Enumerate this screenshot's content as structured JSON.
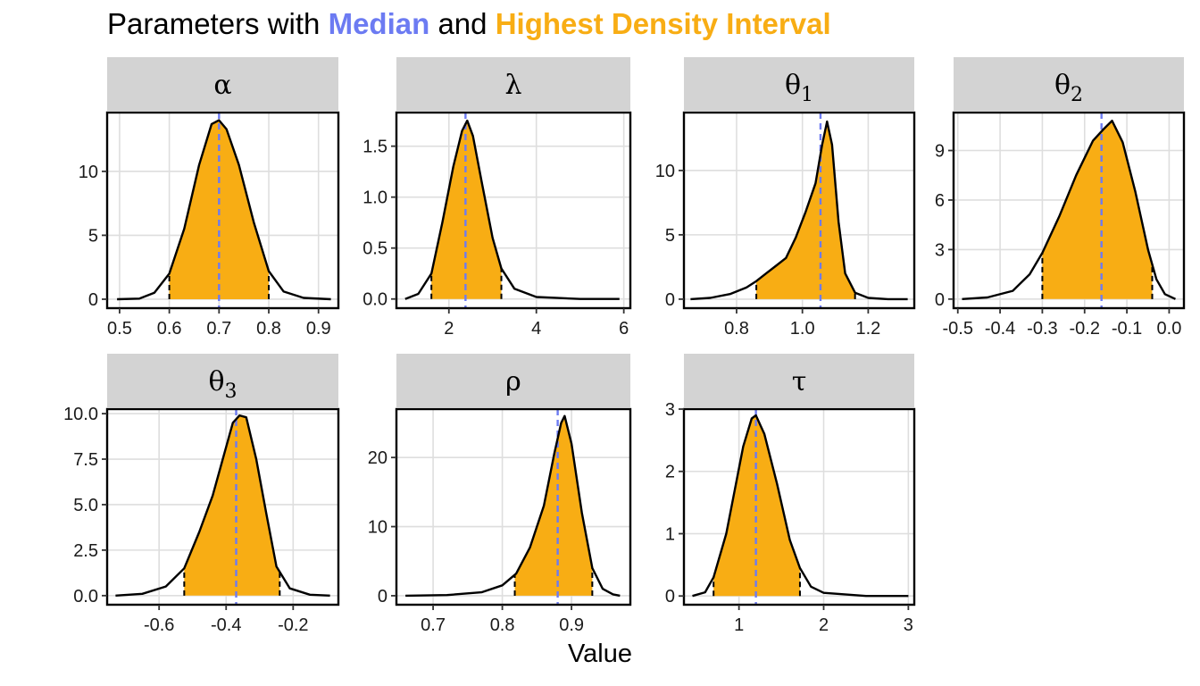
{
  "title": {
    "prefix": "Parameters with ",
    "median_word": "Median",
    "middle": " and ",
    "hdi_word": "Highest Density Interval"
  },
  "xlabel": "Value",
  "colors": {
    "median_line": "#6c7bf2",
    "hdi_fill": "#f8ad14",
    "strip_bg": "#d3d3d3",
    "grid": "#dedede",
    "curve": "#000000"
  },
  "chart_data": [
    {
      "type": "area",
      "param": "α",
      "xlim": [
        0.475,
        0.94
      ],
      "ylim": [
        -0.7,
        14.6
      ],
      "x_ticks": [
        0.5,
        0.6,
        0.7,
        0.8,
        0.9
      ],
      "x_tick_labels": [
        "0.5",
        "0.6",
        "0.7",
        "0.8",
        "0.9"
      ],
      "y_ticks": [
        0,
        5,
        10
      ],
      "y_tick_labels": [
        "0",
        "5",
        "10"
      ],
      "median": 0.7,
      "hdi": [
        0.6,
        0.8
      ],
      "density": [
        [
          0.495,
          0.0
        ],
        [
          0.54,
          0.05
        ],
        [
          0.57,
          0.5
        ],
        [
          0.6,
          2.0
        ],
        [
          0.63,
          5.5
        ],
        [
          0.66,
          10.5
        ],
        [
          0.685,
          13.7
        ],
        [
          0.7,
          14.0
        ],
        [
          0.715,
          13.3
        ],
        [
          0.74,
          10.5
        ],
        [
          0.77,
          6.0
        ],
        [
          0.8,
          2.2
        ],
        [
          0.83,
          0.6
        ],
        [
          0.87,
          0.1
        ],
        [
          0.925,
          0.0
        ]
      ]
    },
    {
      "type": "area",
      "param": "λ",
      "xlim": [
        0.8,
        6.15
      ],
      "ylim": [
        -0.09,
        1.83
      ],
      "x_ticks": [
        2,
        4,
        6
      ],
      "x_tick_labels": [
        "2",
        "4",
        "6"
      ],
      "y_ticks": [
        0.0,
        0.5,
        1.0,
        1.5
      ],
      "y_tick_labels": [
        "0.0",
        "0.5",
        "1.0",
        "1.5"
      ],
      "median": 2.38,
      "hdi": [
        1.6,
        3.2
      ],
      "density": [
        [
          1.0,
          0.0
        ],
        [
          1.3,
          0.05
        ],
        [
          1.6,
          0.25
        ],
        [
          1.85,
          0.75
        ],
        [
          2.1,
          1.3
        ],
        [
          2.3,
          1.65
        ],
        [
          2.42,
          1.75
        ],
        [
          2.55,
          1.6
        ],
        [
          2.75,
          1.15
        ],
        [
          3.0,
          0.6
        ],
        [
          3.2,
          0.3
        ],
        [
          3.5,
          0.1
        ],
        [
          4.0,
          0.02
        ],
        [
          5.0,
          0.0
        ],
        [
          5.9,
          0.0
        ]
      ]
    },
    {
      "type": "area",
      "param": "θ1",
      "xlim": [
        0.64,
        1.34
      ],
      "ylim": [
        -0.7,
        14.5
      ],
      "x_ticks": [
        0.8,
        1.0,
        1.2
      ],
      "x_tick_labels": [
        "0.8",
        "1.0",
        "1.2"
      ],
      "y_ticks": [
        0,
        5,
        10
      ],
      "y_tick_labels": [
        "0",
        "5",
        "10"
      ],
      "median": 1.055,
      "hdi": [
        0.86,
        1.16
      ],
      "density": [
        [
          0.66,
          0.0
        ],
        [
          0.72,
          0.1
        ],
        [
          0.78,
          0.4
        ],
        [
          0.83,
          0.9
        ],
        [
          0.86,
          1.4
        ],
        [
          0.89,
          2.0
        ],
        [
          0.92,
          2.6
        ],
        [
          0.95,
          3.2
        ],
        [
          0.98,
          4.8
        ],
        [
          1.01,
          6.8
        ],
        [
          1.04,
          9.0
        ],
        [
          1.06,
          12.0
        ],
        [
          1.075,
          13.8
        ],
        [
          1.09,
          12.0
        ],
        [
          1.11,
          6.0
        ],
        [
          1.13,
          2.0
        ],
        [
          1.16,
          0.5
        ],
        [
          1.2,
          0.1
        ],
        [
          1.26,
          0.0
        ],
        [
          1.32,
          0.0
        ]
      ]
    },
    {
      "type": "area",
      "param": "θ2",
      "xlim": [
        -0.51,
        0.035
      ],
      "ylim": [
        -0.55,
        11.3
      ],
      "x_ticks": [
        -0.5,
        -0.4,
        -0.3,
        -0.2,
        -0.1,
        0.0
      ],
      "x_tick_labels": [
        "-0.5",
        "-0.4",
        "-0.3",
        "-0.2",
        "-0.1",
        "0.0"
      ],
      "y_ticks": [
        0,
        3,
        6,
        9
      ],
      "y_tick_labels": [
        "0",
        "3",
        "6",
        "9"
      ],
      "median": -0.16,
      "hdi": [
        -0.3,
        -0.04
      ],
      "density": [
        [
          -0.49,
          0.0
        ],
        [
          -0.43,
          0.1
        ],
        [
          -0.37,
          0.5
        ],
        [
          -0.33,
          1.5
        ],
        [
          -0.3,
          2.8
        ],
        [
          -0.26,
          5.0
        ],
        [
          -0.22,
          7.5
        ],
        [
          -0.18,
          9.6
        ],
        [
          -0.155,
          10.3
        ],
        [
          -0.135,
          10.8
        ],
        [
          -0.11,
          9.5
        ],
        [
          -0.08,
          6.5
        ],
        [
          -0.05,
          3.0
        ],
        [
          -0.03,
          1.2
        ],
        [
          -0.01,
          0.3
        ],
        [
          0.015,
          0.0
        ]
      ]
    },
    {
      "type": "area",
      "param": "θ3",
      "xlim": [
        -0.755,
        -0.065
      ],
      "ylim": [
        -0.5,
        10.25
      ],
      "x_ticks": [
        -0.6,
        -0.4,
        -0.2
      ],
      "x_tick_labels": [
        "-0.6",
        "-0.4",
        "-0.2"
      ],
      "y_ticks": [
        0.0,
        2.5,
        5.0,
        7.5,
        10.0
      ],
      "y_tick_labels": [
        "0.0",
        "2.5",
        "5.0",
        "7.5",
        "10.0"
      ],
      "median": -0.37,
      "hdi": [
        -0.525,
        -0.24
      ],
      "density": [
        [
          -0.73,
          0.0
        ],
        [
          -0.65,
          0.1
        ],
        [
          -0.58,
          0.5
        ],
        [
          -0.525,
          1.5
        ],
        [
          -0.48,
          3.5
        ],
        [
          -0.44,
          5.5
        ],
        [
          -0.41,
          7.5
        ],
        [
          -0.38,
          9.5
        ],
        [
          -0.36,
          9.9
        ],
        [
          -0.34,
          9.8
        ],
        [
          -0.31,
          7.5
        ],
        [
          -0.28,
          4.5
        ],
        [
          -0.25,
          1.6
        ],
        [
          -0.21,
          0.4
        ],
        [
          -0.15,
          0.05
        ],
        [
          -0.09,
          0.0
        ]
      ]
    },
    {
      "type": "area",
      "param": "ρ",
      "xlim": [
        0.647,
        0.985
      ],
      "ylim": [
        -1.3,
        27.0
      ],
      "x_ticks": [
        0.7,
        0.8,
        0.9
      ],
      "x_tick_labels": [
        "0.7",
        "0.8",
        "0.9"
      ],
      "y_ticks": [
        0,
        10,
        20
      ],
      "y_tick_labels": [
        "0",
        "10",
        "20"
      ],
      "median": 0.88,
      "hdi": [
        0.818,
        0.93
      ],
      "density": [
        [
          0.66,
          0.0
        ],
        [
          0.72,
          0.1
        ],
        [
          0.77,
          0.5
        ],
        [
          0.8,
          1.5
        ],
        [
          0.82,
          3.2
        ],
        [
          0.84,
          7.0
        ],
        [
          0.86,
          13.0
        ],
        [
          0.875,
          20.5
        ],
        [
          0.885,
          25.0
        ],
        [
          0.89,
          26.0
        ],
        [
          0.9,
          22.0
        ],
        [
          0.915,
          12.0
        ],
        [
          0.93,
          4.0
        ],
        [
          0.945,
          1.0
        ],
        [
          0.96,
          0.2
        ],
        [
          0.97,
          0.0
        ]
      ]
    },
    {
      "type": "area",
      "param": "τ",
      "xlim": [
        0.35,
        3.07
      ],
      "ylim": [
        -0.14,
        3.0
      ],
      "x_ticks": [
        1,
        2,
        3
      ],
      "x_tick_labels": [
        "1",
        "2",
        "3"
      ],
      "y_ticks": [
        0,
        1,
        2,
        3
      ],
      "y_tick_labels": [
        "0",
        "1",
        "2",
        "3"
      ],
      "median": 1.2,
      "hdi": [
        0.7,
        1.72
      ],
      "density": [
        [
          0.45,
          0.0
        ],
        [
          0.6,
          0.06
        ],
        [
          0.7,
          0.3
        ],
        [
          0.85,
          1.0
        ],
        [
          0.95,
          1.7
        ],
        [
          1.05,
          2.4
        ],
        [
          1.15,
          2.85
        ],
        [
          1.2,
          2.9
        ],
        [
          1.3,
          2.6
        ],
        [
          1.45,
          1.8
        ],
        [
          1.6,
          0.9
        ],
        [
          1.72,
          0.45
        ],
        [
          1.85,
          0.15
        ],
        [
          2.0,
          0.05
        ],
        [
          2.5,
          0.0
        ],
        [
          3.0,
          0.0
        ]
      ]
    }
  ]
}
